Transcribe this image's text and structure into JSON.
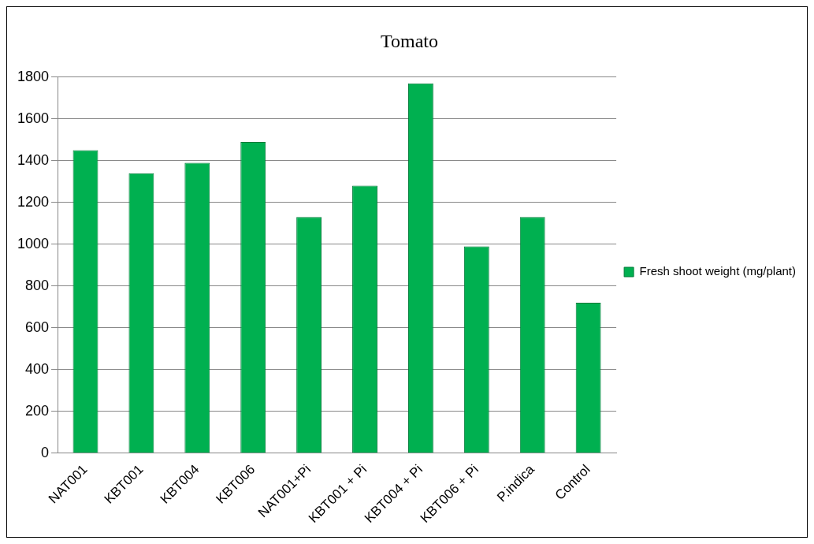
{
  "chart_data": {
    "type": "bar",
    "title": "Tomato",
    "categories": [
      "NAT001",
      "KBT001",
      "KBT004",
      "KBT006",
      "NAT001+Pi",
      "KBT001 + Pi",
      "KBT004 + Pi",
      "KBT006 + Pi",
      "P.indica",
      "Control"
    ],
    "series": [
      {
        "name": "Fresh shoot weight (mg/plant)",
        "color": "#00b050",
        "values": [
          1450,
          1340,
          1390,
          1490,
          1130,
          1280,
          1770,
          990,
          1130,
          720
        ]
      }
    ],
    "ylim": [
      0,
      1800
    ],
    "yticks": [
      0,
      200,
      400,
      600,
      800,
      1000,
      1200,
      1400,
      1600,
      1800
    ],
    "grid": "y",
    "legend": "right"
  }
}
